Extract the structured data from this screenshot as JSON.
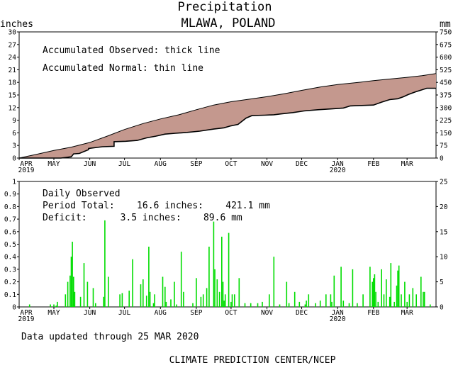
{
  "header": {
    "title": "Precipitation",
    "subtitle": "MLAWA, POLAND",
    "left_unit": "inches",
    "right_unit": "mm"
  },
  "footer": {
    "updated": "Data updated through 25 MAR 2020",
    "credit": "CLIMATE PREDICTION CENTER/NCEP"
  },
  "colors": {
    "deficit_fill": "#c4988e",
    "daily_bar": "#00dd00",
    "line": "#000000"
  },
  "chart_data": [
    {
      "type": "area",
      "annotations": [
        "Accumulated Observed: thick line",
        "Accumulated Normal: thin line"
      ],
      "ylabel": "inches",
      "y2label": "mm",
      "ylim": [
        0,
        30
      ],
      "y2lim": [
        0,
        750
      ],
      "y_ticks": [
        0,
        3,
        6,
        9,
        12,
        15,
        18,
        21,
        24,
        27,
        30
      ],
      "y2_ticks": [
        0,
        75,
        150,
        225,
        300,
        375,
        450,
        525,
        600,
        675,
        750
      ],
      "xlim": [
        0,
        360
      ],
      "x_month_ticks": [
        {
          "day": 0,
          "label": "APR",
          "year": "2019"
        },
        {
          "day": 30,
          "label": "MAY",
          "year": ""
        },
        {
          "day": 61,
          "label": "JUN",
          "year": ""
        },
        {
          "day": 91,
          "label": "JUL",
          "year": ""
        },
        {
          "day": 122,
          "label": "AUG",
          "year": ""
        },
        {
          "day": 153,
          "label": "SEP",
          "year": ""
        },
        {
          "day": 183,
          "label": "OCT",
          "year": ""
        },
        {
          "day": 214,
          "label": "NOV",
          "year": ""
        },
        {
          "day": 244,
          "label": "DEC",
          "year": ""
        },
        {
          "day": 275,
          "label": "JAN",
          "year": "2020"
        },
        {
          "day": 306,
          "label": "FEB",
          "year": ""
        },
        {
          "day": 335,
          "label": "MAR",
          "year": ""
        }
      ],
      "series": [
        {
          "name": "Accumulated Normal",
          "x": [
            0,
            15,
            30,
            45,
            61,
            76,
            91,
            107,
            122,
            138,
            153,
            168,
            183,
            199,
            214,
            229,
            244,
            260,
            275,
            290,
            306,
            320,
            335,
            348,
            360
          ],
          "y": [
            0,
            0.9,
            1.8,
            2.6,
            3.7,
            5.2,
            6.8,
            8.2,
            9.3,
            10.3,
            11.5,
            12.6,
            13.4,
            14.0,
            14.6,
            15.3,
            16.1,
            16.9,
            17.5,
            17.9,
            18.4,
            18.8,
            19.2,
            19.6,
            20.1
          ]
        },
        {
          "name": "Accumulated Observed",
          "x": [
            0,
            36,
            45,
            47,
            52,
            60,
            60,
            72,
            82,
            82,
            92,
            102,
            110,
            118,
            126,
            135,
            145,
            156,
            168,
            177,
            182,
            189,
            196,
            201,
            212,
            220,
            226,
            236,
            246,
            258,
            270,
            280,
            286,
            296,
            306,
            313,
            320,
            327,
            332,
            336,
            342,
            352,
            360
          ],
          "y": [
            0,
            0,
            0.3,
            1.0,
            1.1,
            2.0,
            2.3,
            2.7,
            2.8,
            3.9,
            4.0,
            4.2,
            4.8,
            5.2,
            5.7,
            5.9,
            6.1,
            6.4,
            6.9,
            7.2,
            7.6,
            8.0,
            9.5,
            10.1,
            10.2,
            10.3,
            10.5,
            10.8,
            11.2,
            11.5,
            11.7,
            11.9,
            12.4,
            12.5,
            12.6,
            13.3,
            13.9,
            14.1,
            14.6,
            15.1,
            15.7,
            16.6,
            16.6
          ]
        }
      ]
    },
    {
      "type": "bar",
      "annotations": [
        "Daily Observed",
        "Period Total:    16.6 inches:    421.1 mm",
        "Deficit:      3.5 inches:    89.6 mm"
      ],
      "ylim": [
        0,
        1
      ],
      "y2lim": [
        0,
        25
      ],
      "y_ticks": [
        0,
        0.1,
        0.2,
        0.3,
        0.4,
        0.5,
        0.6,
        0.7,
        0.8,
        0.9,
        1
      ],
      "y_tick_labels": [
        "0",
        "0.1",
        "0.2",
        "0.3",
        "0.4",
        "0.5",
        "0.6",
        "0.7",
        "0.8",
        "0.9",
        "1"
      ],
      "y2_ticks": [
        0,
        5,
        10,
        15,
        20,
        25
      ],
      "xlim": [
        0,
        360
      ],
      "x_month_ticks": [
        {
          "day": 0,
          "label": "APR",
          "year": "2019"
        },
        {
          "day": 30,
          "label": "MAY",
          "year": ""
        },
        {
          "day": 61,
          "label": "JUN",
          "year": ""
        },
        {
          "day": 91,
          "label": "JUL",
          "year": ""
        },
        {
          "day": 122,
          "label": "AUG",
          "year": ""
        },
        {
          "day": 153,
          "label": "SEP",
          "year": ""
        },
        {
          "day": 183,
          "label": "OCT",
          "year": ""
        },
        {
          "day": 214,
          "label": "NOV",
          "year": ""
        },
        {
          "day": 244,
          "label": "DEC",
          "year": ""
        },
        {
          "day": 275,
          "label": "JAN",
          "year": "2020"
        },
        {
          "day": 306,
          "label": "FEB",
          "year": ""
        },
        {
          "day": 335,
          "label": "MAR",
          "year": ""
        }
      ],
      "bars": {
        "x": [
          9,
          27,
          30,
          32,
          33,
          40,
          42,
          44,
          45,
          46,
          47,
          48,
          53,
          56,
          59,
          64,
          66,
          73,
          74,
          77,
          87,
          89,
          95,
          98,
          105,
          107,
          110,
          112,
          113,
          116,
          117,
          124,
          126,
          127,
          131,
          134,
          136,
          140,
          142,
          150,
          153,
          157,
          159,
          162,
          164,
          168,
          169,
          171,
          173,
          175,
          176,
          177,
          178,
          181,
          183,
          184,
          186,
          190,
          195,
          200,
          206,
          210,
          216,
          220,
          225,
          231,
          233,
          238,
          242,
          247,
          248,
          250,
          256,
          260,
          265,
          269,
          270,
          272,
          278,
          280,
          285,
          288,
          292,
          297,
          303,
          305,
          306,
          307,
          308,
          310,
          313,
          315,
          317,
          320,
          321,
          324,
          326,
          327,
          328,
          330,
          333,
          335,
          337,
          340,
          343,
          347,
          349,
          350,
          355
        ],
        "y": [
          0.02,
          0.02,
          0.02,
          0.01,
          0.04,
          0.1,
          0.2,
          0.25,
          0.4,
          0.52,
          0.24,
          0.12,
          0.08,
          0.35,
          0.2,
          0.15,
          0.03,
          0.08,
          0.69,
          0.24,
          0.1,
          0.11,
          0.13,
          0.38,
          0.18,
          0.22,
          0.09,
          0.48,
          0.12,
          0.03,
          0.1,
          0.24,
          0.16,
          0.04,
          0.06,
          0.2,
          0.02,
          0.44,
          0.12,
          0.03,
          0.23,
          0.08,
          0.1,
          0.15,
          0.48,
          0.68,
          0.3,
          0.22,
          0.12,
          0.56,
          0.2,
          0.05,
          0.1,
          0.59,
          0.04,
          0.1,
          0.1,
          0.23,
          0.03,
          0.03,
          0.03,
          0.04,
          0.1,
          0.4,
          0.02,
          0.2,
          0.03,
          0.12,
          0.04,
          0.02,
          0.05,
          0.1,
          0.03,
          0.05,
          0.1,
          0.1,
          0.04,
          0.25,
          0.32,
          0.05,
          0.03,
          0.3,
          0.03,
          0.1,
          0.32,
          0.2,
          0.23,
          0.26,
          0.12,
          0.04,
          0.3,
          0.1,
          0.22,
          0.08,
          0.35,
          0.04,
          0.17,
          0.29,
          0.33,
          0.1,
          0.2,
          0.04,
          0.1,
          0.15,
          0.1,
          0.24,
          0.12,
          0.12,
          0.02
        ]
      }
    }
  ]
}
